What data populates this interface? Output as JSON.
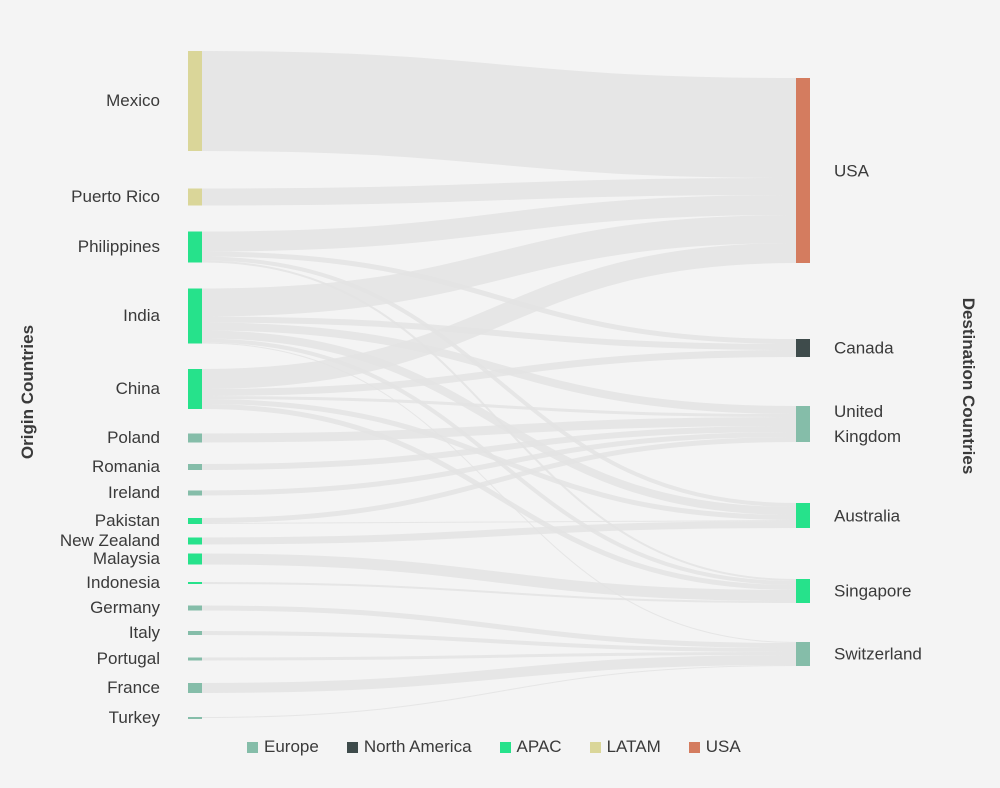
{
  "axis": {
    "left_title": "Origin Countries",
    "right_title": "Destination Countries"
  },
  "colors": {
    "Europe": "#85bda9",
    "North America": "#3e4b4b",
    "APAC": "#26e28b",
    "LATAM": "#dad699",
    "USA": "#d47c5f",
    "link": "#e3e3e3"
  },
  "legend": [
    {
      "label": "Europe",
      "region": "Europe"
    },
    {
      "label": "North America",
      "region": "North America"
    },
    {
      "label": "APAC",
      "region": "APAC"
    },
    {
      "label": "LATAM",
      "region": "LATAM"
    },
    {
      "label": "USA",
      "region": "USA"
    }
  ],
  "chart_data": {
    "type": "sankey",
    "sources": [
      {
        "name": "Mexico",
        "region": "LATAM"
      },
      {
        "name": "Puerto Rico",
        "region": "LATAM"
      },
      {
        "name": "Philippines",
        "region": "APAC"
      },
      {
        "name": "India",
        "region": "APAC"
      },
      {
        "name": "China",
        "region": "APAC"
      },
      {
        "name": "Poland",
        "region": "Europe"
      },
      {
        "name": "Romania",
        "region": "Europe"
      },
      {
        "name": "Ireland",
        "region": "Europe"
      },
      {
        "name": "Pakistan",
        "region": "APAC"
      },
      {
        "name": "New Zealand",
        "region": "APAC"
      },
      {
        "name": "Malaysia",
        "region": "APAC"
      },
      {
        "name": "Indonesia",
        "region": "APAC"
      },
      {
        "name": "Germany",
        "region": "Europe"
      },
      {
        "name": "Italy",
        "region": "Europe"
      },
      {
        "name": "Portugal",
        "region": "Europe"
      },
      {
        "name": "France",
        "region": "Europe"
      },
      {
        "name": "Turkey",
        "region": "Europe"
      }
    ],
    "destinations": [
      {
        "name": "USA",
        "label_lines": [
          "USA"
        ],
        "region": "USA"
      },
      {
        "name": "Canada",
        "label_lines": [
          "Canada"
        ],
        "region": "North America"
      },
      {
        "name": "United Kingdom",
        "label_lines": [
          "United",
          "Kingdom"
        ],
        "region": "Europe"
      },
      {
        "name": "Australia",
        "label_lines": [
          "Australia"
        ],
        "region": "APAC"
      },
      {
        "name": "Singapore",
        "label_lines": [
          "Singapore"
        ],
        "region": "APAC"
      },
      {
        "name": "Switzerland",
        "label_lines": [
          "Switzerland"
        ],
        "region": "Europe"
      }
    ],
    "links": [
      {
        "source": "Mexico",
        "target": "USA",
        "value": 100
      },
      {
        "source": "Puerto Rico",
        "target": "USA",
        "value": 17
      },
      {
        "source": "Philippines",
        "target": "USA",
        "value": 20
      },
      {
        "source": "Philippines",
        "target": "Canada",
        "value": 5
      },
      {
        "source": "Philippines",
        "target": "Australia",
        "value": 4
      },
      {
        "source": "Philippines",
        "target": "Singapore",
        "value": 2
      },
      {
        "source": "India",
        "target": "USA",
        "value": 28
      },
      {
        "source": "India",
        "target": "Canada",
        "value": 6
      },
      {
        "source": "India",
        "target": "United Kingdom",
        "value": 8
      },
      {
        "source": "India",
        "target": "Australia",
        "value": 8
      },
      {
        "source": "India",
        "target": "Singapore",
        "value": 4
      },
      {
        "source": "India",
        "target": "Switzerland",
        "value": 1
      },
      {
        "source": "China",
        "target": "USA",
        "value": 20
      },
      {
        "source": "China",
        "target": "Canada",
        "value": 7
      },
      {
        "source": "China",
        "target": "United Kingdom",
        "value": 3
      },
      {
        "source": "China",
        "target": "Australia",
        "value": 5
      },
      {
        "source": "China",
        "target": "Singapore",
        "value": 5
      },
      {
        "source": "Poland",
        "target": "United Kingdom",
        "value": 9
      },
      {
        "source": "Romania",
        "target": "United Kingdom",
        "value": 6
      },
      {
        "source": "Ireland",
        "target": "United Kingdom",
        "value": 5
      },
      {
        "source": "Pakistan",
        "target": "United Kingdom",
        "value": 5
      },
      {
        "source": "Pakistan",
        "target": "Australia",
        "value": 1
      },
      {
        "source": "New Zealand",
        "target": "Australia",
        "value": 7
      },
      {
        "source": "Malaysia",
        "target": "Singapore",
        "value": 11
      },
      {
        "source": "Indonesia",
        "target": "Singapore",
        "value": 2
      },
      {
        "source": "Germany",
        "target": "Switzerland",
        "value": 5
      },
      {
        "source": "Italy",
        "target": "Switzerland",
        "value": 4
      },
      {
        "source": "Portugal",
        "target": "Switzerland",
        "value": 3
      },
      {
        "source": "France",
        "target": "Switzerland",
        "value": 10
      },
      {
        "source": "Turkey",
        "target": "Switzerland",
        "value": 1
      }
    ]
  }
}
